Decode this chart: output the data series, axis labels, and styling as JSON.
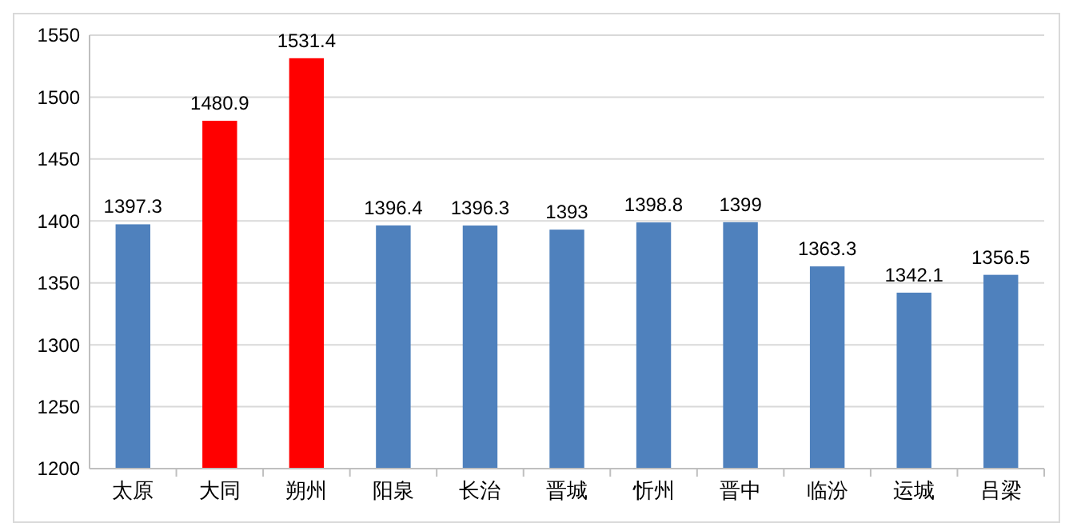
{
  "chart_data": {
    "type": "bar",
    "categories": [
      "太原",
      "大同",
      "朔州",
      "阳泉",
      "长治",
      "晋城",
      "忻州",
      "晋中",
      "临汾",
      "运城",
      "吕梁"
    ],
    "values": [
      1397.3,
      1480.9,
      1531.4,
      1396.4,
      1396.3,
      1393,
      1398.8,
      1399,
      1363.3,
      1342.1,
      1356.5
    ],
    "colors": [
      "#4f81bd",
      "#ff0000",
      "#ff0000",
      "#4f81bd",
      "#4f81bd",
      "#4f81bd",
      "#4f81bd",
      "#4f81bd",
      "#4f81bd",
      "#4f81bd",
      "#4f81bd"
    ],
    "ylim": [
      1200,
      1550
    ],
    "yticks": [
      1200,
      1250,
      1300,
      1350,
      1400,
      1450,
      1500,
      1550
    ],
    "grid": "y",
    "data_labels": true
  }
}
